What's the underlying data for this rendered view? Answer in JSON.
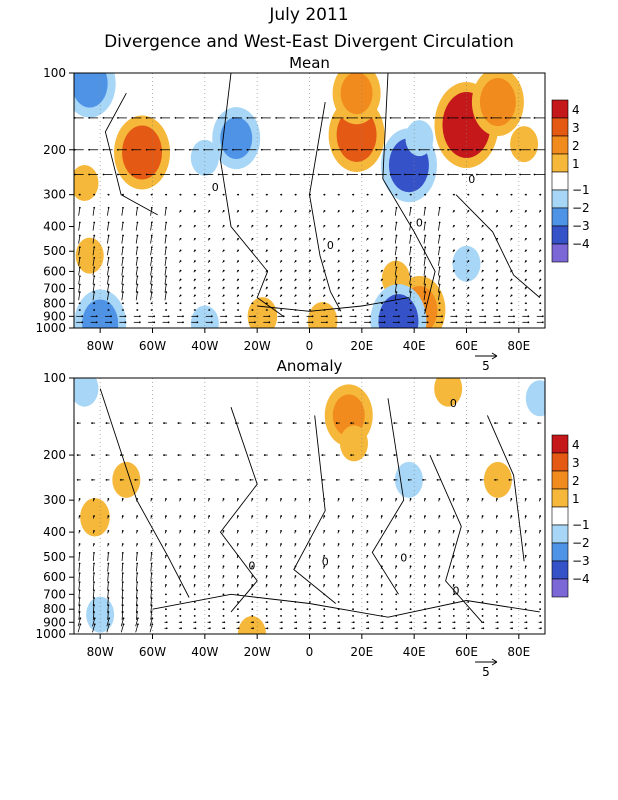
{
  "title": "July 2011",
  "subtitle": "Divergence and West-East Divergent Circulation",
  "colors": {
    "neg4": "#7b68d6",
    "neg3": "#3552c8",
    "neg2": "#4f93e6",
    "neg1": "#a8d6f6",
    "zero": "#ffffff",
    "pos1": "#f5b83a",
    "pos2": "#f28b1e",
    "pos3": "#e45a15",
    "pos4": "#c4181b",
    "contour": "#000000",
    "grid": "#7f7f7f"
  },
  "chart_data": [
    {
      "type": "heatmap",
      "title": "Mean",
      "x_ticks": [
        "80W",
        "60W",
        "40W",
        "20W",
        "0",
        "20E",
        "40E",
        "60E",
        "80E"
      ],
      "x_tick_values": [
        -80,
        -60,
        -40,
        -20,
        0,
        20,
        40,
        60,
        80
      ],
      "xlim": [
        -90,
        90
      ],
      "y_ticks": [
        "100",
        "200",
        "300",
        "400",
        "500",
        "600",
        "700",
        "800",
        "900",
        "1000"
      ],
      "y_tick_values": [
        100,
        200,
        300,
        400,
        500,
        600,
        700,
        800,
        900,
        1000
      ],
      "ylim": [
        1000,
        100
      ],
      "y_scale": "log",
      "colorbar_labels": [
        "4",
        "3",
        "2",
        "1",
        "−1",
        "−2",
        "−3",
        "−4"
      ],
      "vector_reference": "5",
      "contour_label": "0",
      "regions": [
        {
          "lon": -64,
          "p": 205,
          "v": 2.5
        },
        {
          "lon": -84,
          "p": 110,
          "v": -2
        },
        {
          "lon": -86,
          "p": 270,
          "v": 1
        },
        {
          "lon": -84,
          "p": 520,
          "v": 1
        },
        {
          "lon": -28,
          "p": 180,
          "v": -1.5
        },
        {
          "lon": -40,
          "p": 215,
          "v": -1
        },
        {
          "lon": 18,
          "p": 175,
          "v": 2.5
        },
        {
          "lon": 18,
          "p": 120,
          "v": 1.5
        },
        {
          "lon": 38,
          "p": 230,
          "v": -2.5
        },
        {
          "lon": 42,
          "p": 180,
          "v": -1
        },
        {
          "lon": 60,
          "p": 160,
          "v": 3.5
        },
        {
          "lon": 72,
          "p": 130,
          "v": 2
        },
        {
          "lon": 82,
          "p": 190,
          "v": 1
        },
        {
          "lon": 60,
          "p": 560,
          "v": -1
        },
        {
          "lon": 33,
          "p": 640,
          "v": 1
        },
        {
          "lon": 42,
          "p": 850,
          "v": 2
        },
        {
          "lon": 34,
          "p": 940,
          "v": -2.5
        },
        {
          "lon": -80,
          "p": 960,
          "v": -2
        },
        {
          "lon": -40,
          "p": 960,
          "v": -1
        },
        {
          "lon": -18,
          "p": 900,
          "v": 1.2
        },
        {
          "lon": 5,
          "p": 940,
          "v": 1.2
        }
      ]
    },
    {
      "type": "heatmap",
      "title": "Anomaly",
      "x_ticks": [
        "80W",
        "60W",
        "40W",
        "20W",
        "0",
        "20E",
        "40E",
        "60E",
        "80E"
      ],
      "x_tick_values": [
        -80,
        -60,
        -40,
        -20,
        0,
        20,
        40,
        60,
        80
      ],
      "xlim": [
        -90,
        90
      ],
      "y_ticks": [
        "100",
        "200",
        "300",
        "400",
        "500",
        "600",
        "700",
        "800",
        "900",
        "1000"
      ],
      "y_tick_values": [
        100,
        200,
        300,
        400,
        500,
        600,
        700,
        800,
        900,
        1000
      ],
      "ylim": [
        1000,
        100
      ],
      "y_scale": "log",
      "colorbar_labels": [
        "4",
        "3",
        "2",
        "1",
        "−1",
        "−2",
        "−3",
        "−4"
      ],
      "vector_reference": "5",
      "contour_label": "0",
      "regions": [
        {
          "lon": -86,
          "p": 110,
          "v": -1
        },
        {
          "lon": -82,
          "p": 350,
          "v": 1.2
        },
        {
          "lon": -70,
          "p": 250,
          "v": 1
        },
        {
          "lon": -80,
          "p": 840,
          "v": -1
        },
        {
          "lon": 15,
          "p": 140,
          "v": 1.5
        },
        {
          "lon": 17,
          "p": 180,
          "v": 1
        },
        {
          "lon": 53,
          "p": 110,
          "v": 1
        },
        {
          "lon": 88,
          "p": 120,
          "v": -1
        },
        {
          "lon": 38,
          "p": 250,
          "v": -1
        },
        {
          "lon": 72,
          "p": 250,
          "v": 1
        },
        {
          "lon": -22,
          "p": 1000,
          "v": 1
        }
      ]
    }
  ]
}
